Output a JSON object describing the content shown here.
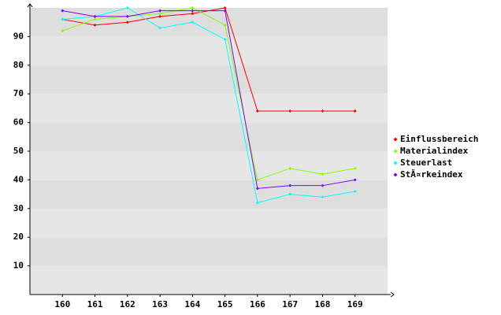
{
  "chart_data": {
    "type": "line",
    "x": [
      160,
      161,
      162,
      163,
      164,
      165,
      166,
      167,
      168,
      169
    ],
    "xlim": [
      159,
      170
    ],
    "xticks": [
      160,
      161,
      162,
      163,
      164,
      165,
      166,
      167,
      168,
      169
    ],
    "ylim": [
      0,
      100
    ],
    "yticks": [
      10,
      20,
      30,
      40,
      50,
      60,
      70,
      80,
      90
    ],
    "grid": true,
    "legend": "right",
    "series": [
      {
        "name": "Einflussbereich",
        "color": "#ff0000",
        "values": [
          96,
          94,
          95,
          97,
          98,
          100,
          64,
          64,
          64,
          64
        ]
      },
      {
        "name": "Materialindex",
        "color": "#80ff00",
        "values": [
          92,
          96,
          97,
          98,
          100,
          94,
          40,
          44,
          42,
          44
        ]
      },
      {
        "name": "Steuerlast",
        "color": "#00ffff",
        "values": [
          96,
          97,
          100,
          93,
          95,
          89,
          32,
          35,
          34,
          36
        ]
      },
      {
        "name": "StÃ¤rkeindex",
        "color": "#8000ff",
        "values": [
          99,
          97,
          97,
          99,
          99,
          99,
          37,
          38,
          38,
          40
        ]
      }
    ]
  }
}
